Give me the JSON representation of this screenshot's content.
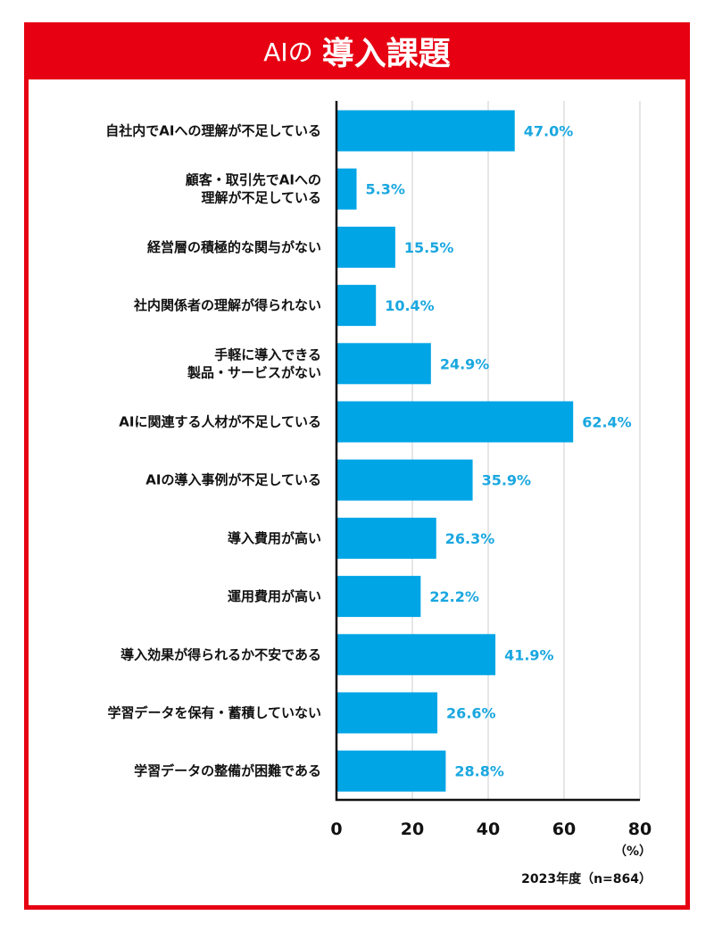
{
  "header": {
    "title_prefix": "AIの",
    "title_main": "導入課題"
  },
  "colors": {
    "frame": "#e60012",
    "bar": "#00a5e6",
    "data_label": "#1aa7e0",
    "grid": "#cccccc"
  },
  "chart_data": {
    "type": "bar",
    "orientation": "horizontal",
    "categories": [
      [
        "自社内でAIへの理解が不足している"
      ],
      [
        "顧客・取引先でAIへの",
        "理解が不足している"
      ],
      [
        "経営層の積極的な関与がない"
      ],
      [
        "社内関係者の理解が得られない"
      ],
      [
        "手軽に導入できる",
        "製品・サービスがない"
      ],
      [
        "AIに関連する人材が不足している"
      ],
      [
        "AIの導入事例が不足している"
      ],
      [
        "導入費用が高い"
      ],
      [
        "運用費用が高い"
      ],
      [
        "導入効果が得られるか不安である"
      ],
      [
        "学習データを保有・蓄積していない"
      ],
      [
        "学習データの整備が困難である"
      ]
    ],
    "values": [
      47.0,
      5.3,
      15.5,
      10.4,
      24.9,
      62.4,
      35.9,
      26.3,
      22.2,
      41.9,
      26.6,
      28.8
    ],
    "value_labels": [
      "47.0%",
      "5.3%",
      "15.5%",
      "10.4%",
      "24.9%",
      "62.4%",
      "35.9%",
      "26.3%",
      "22.2%",
      "41.9%",
      "26.6%",
      "28.8%"
    ],
    "xlim": [
      0,
      80
    ],
    "xticks": [
      "0",
      "20",
      "40",
      "60",
      "80"
    ],
    "x_unit": "（%）",
    "note": "2023年度（n=864）",
    "grid": true
  }
}
